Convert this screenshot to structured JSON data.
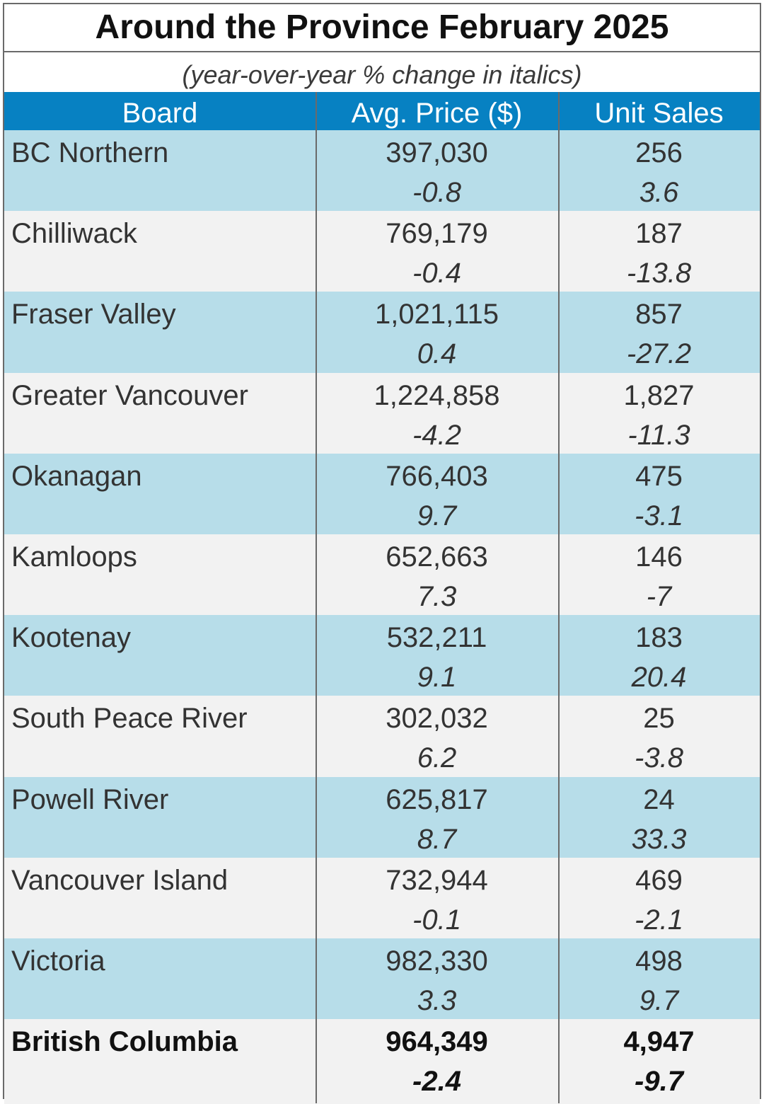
{
  "title": "Around the Province February 2025",
  "subtitle": "(year-over-year % change in italics)",
  "columns": [
    "Board",
    "Avg. Price ($)",
    "Unit Sales"
  ],
  "rows": [
    {
      "board": "BC Northern",
      "price": "397,030",
      "price_change": "-0.8",
      "units": "256",
      "units_change": "3.6"
    },
    {
      "board": "Chilliwack",
      "price": "769,179",
      "price_change": "-0.4",
      "units": "187",
      "units_change": "-13.8"
    },
    {
      "board": "Fraser Valley",
      "price": "1,021,115",
      "price_change": "0.4",
      "units": "857",
      "units_change": "-27.2"
    },
    {
      "board": "Greater Vancouver",
      "price": "1,224,858",
      "price_change": "-4.2",
      "units": "1,827",
      "units_change": "-11.3"
    },
    {
      "board": "Okanagan",
      "price": "766,403",
      "price_change": "9.7",
      "units": "475",
      "units_change": "-3.1"
    },
    {
      "board": "Kamloops",
      "price": "652,663",
      "price_change": "7.3",
      "units": "146",
      "units_change": "-7"
    },
    {
      "board": "Kootenay",
      "price": "532,211",
      "price_change": "9.1",
      "units": "183",
      "units_change": "20.4"
    },
    {
      "board": "South Peace River",
      "price": "302,032",
      "price_change": "6.2",
      "units": "25",
      "units_change": "-3.8"
    },
    {
      "board": "Powell River",
      "price": "625,817",
      "price_change": "8.7",
      "units": "24",
      "units_change": "33.3"
    },
    {
      "board": "Vancouver Island",
      "price": "732,944",
      "price_change": "-0.1",
      "units": "469",
      "units_change": "-2.1"
    },
    {
      "board": "Victoria",
      "price": "982,330",
      "price_change": "3.3",
      "units": "498",
      "units_change": "9.7"
    }
  ],
  "total": {
    "board": "British Columbia",
    "price": "964,349",
    "price_change": "-2.4",
    "units": "4,947",
    "units_change": "-9.7"
  },
  "colors": {
    "header_bg": "#0781c2",
    "band_blue": "#b7dde9",
    "band_grey": "#f2f2f2",
    "border": "#6a6a6a"
  }
}
